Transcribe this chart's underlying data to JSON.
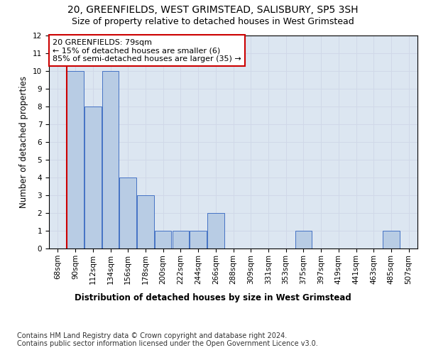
{
  "title": "20, GREENFIELDS, WEST GRIMSTEAD, SALISBURY, SP5 3SH",
  "subtitle": "Size of property relative to detached houses in West Grimstead",
  "xlabel": "Distribution of detached houses by size in West Grimstead",
  "ylabel": "Number of detached properties",
  "categories": [
    "68sqm",
    "90sqm",
    "112sqm",
    "134sqm",
    "156sqm",
    "178sqm",
    "200sqm",
    "222sqm",
    "244sqm",
    "266sqm",
    "288sqm",
    "309sqm",
    "331sqm",
    "353sqm",
    "375sqm",
    "397sqm",
    "419sqm",
    "441sqm",
    "463sqm",
    "485sqm",
    "507sqm"
  ],
  "values": [
    0,
    10,
    8,
    10,
    4,
    3,
    1,
    1,
    1,
    2,
    0,
    0,
    0,
    0,
    1,
    0,
    0,
    0,
    0,
    1,
    0
  ],
  "bar_color": "#b8cce4",
  "bar_edge_color": "#4472c4",
  "subject_line_color": "#cc0000",
  "annotation_box_text": "20 GREENFIELDS: 79sqm\n← 15% of detached houses are smaller (6)\n85% of semi-detached houses are larger (35) →",
  "annotation_box_color": "#cc0000",
  "annotation_box_fill": "#ffffff",
  "ylim": [
    0,
    12
  ],
  "yticks": [
    0,
    1,
    2,
    3,
    4,
    5,
    6,
    7,
    8,
    9,
    10,
    11,
    12
  ],
  "grid_color": "#d0d8e8",
  "background_color": "#dce6f1",
  "footer_text": "Contains HM Land Registry data © Crown copyright and database right 2024.\nContains public sector information licensed under the Open Government Licence v3.0.",
  "title_fontsize": 10,
  "subtitle_fontsize": 9,
  "axis_label_fontsize": 8.5,
  "tick_fontsize": 7.5,
  "annotation_fontsize": 8,
  "footer_fontsize": 7
}
